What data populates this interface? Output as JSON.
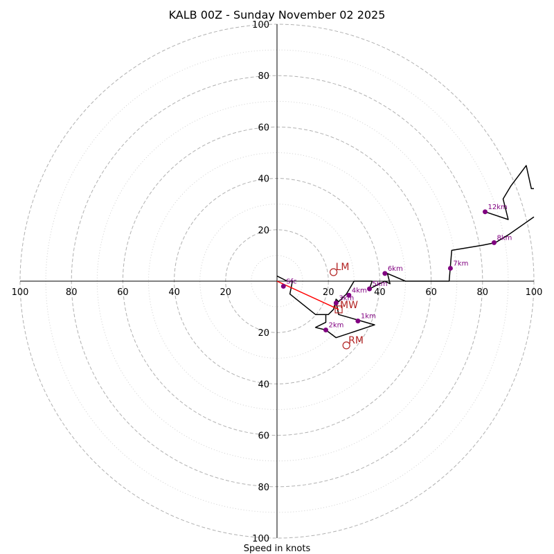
{
  "chart_data": {
    "type": "hodograph",
    "title": "KALB 00Z - Sunday November 02 2025",
    "xlabel": "Speed in knots",
    "ylabel": "",
    "xlim": [
      -100,
      100
    ],
    "ylim": [
      -100,
      100
    ],
    "ring_major": [
      20,
      40,
      60,
      80,
      100
    ],
    "ring_minor": [
      10,
      30,
      50,
      70,
      90
    ],
    "ticks": {
      "top": [
        "100",
        "80",
        "60",
        "40",
        "20"
      ],
      "bottom": [
        "20",
        "40",
        "60",
        "80",
        "100"
      ],
      "left": [
        "100",
        "80",
        "60",
        "40",
        "20"
      ],
      "right": [
        "20",
        "40",
        "60",
        "80",
        "100"
      ]
    },
    "hodograph_line": [
      [
        0,
        2
      ],
      [
        4,
        0
      ],
      [
        6,
        0
      ],
      [
        5,
        -5
      ],
      [
        15,
        -13
      ],
      [
        20,
        -13
      ],
      [
        22,
        -11
      ],
      [
        23,
        -7
      ],
      [
        24,
        -8
      ],
      [
        25,
        -7
      ],
      [
        27,
        -5
      ],
      [
        30,
        0
      ],
      [
        37,
        0
      ],
      [
        36,
        -3
      ],
      [
        42,
        0
      ],
      [
        44,
        -1
      ],
      [
        43,
        3
      ],
      [
        50,
        0
      ],
      [
        67,
        0
      ],
      [
        68,
        12
      ],
      [
        80,
        14
      ],
      [
        85,
        15
      ],
      [
        90,
        18
      ],
      [
        100,
        25
      ]
    ],
    "hodograph_lower": [
      [
        23,
        -8
      ],
      [
        24,
        -13
      ],
      [
        31,
        -15
      ],
      [
        38,
        -17
      ],
      [
        23,
        -22
      ],
      [
        19,
        -19
      ],
      [
        15,
        -18
      ],
      [
        17,
        -17
      ],
      [
        19,
        -16
      ],
      [
        19,
        -13
      ]
    ],
    "hodograph_upper": [
      [
        81,
        27
      ],
      [
        90,
        24
      ],
      [
        88,
        32
      ],
      [
        91,
        37
      ],
      [
        97,
        45
      ],
      [
        99,
        36
      ],
      [
        100,
        36
      ]
    ],
    "height_markers": [
      {
        "label": "1km",
        "u": 31.5,
        "v": -15.5
      },
      {
        "label": "2km",
        "u": 19,
        "v": -19
      },
      {
        "label": "3km",
        "u": 23,
        "v": -8.5
      },
      {
        "label": "4km",
        "u": 28,
        "v": -5.5
      },
      {
        "label": "5km",
        "u": 36,
        "v": -3
      },
      {
        "label": "6km",
        "u": 42,
        "v": 3
      },
      {
        "label": "7km",
        "u": 67.5,
        "v": 5
      },
      {
        "label": "8km",
        "u": 84.5,
        "v": 15
      },
      {
        "label": "12km",
        "u": 81,
        "v": 27
      },
      {
        "label": "Sfc",
        "u": 2.5,
        "v": -2
      }
    ],
    "storm_motion": {
      "LM": {
        "label": "LM",
        "u": 22,
        "v": 3.5
      },
      "RM": {
        "label": "RM",
        "u": 27,
        "v": -25
      },
      "MW": {
        "label": "MW",
        "u": 24,
        "v": -11
      }
    },
    "shear_vector": [
      [
        0,
        0
      ],
      [
        24,
        -11
      ]
    ],
    "colors": {
      "hodograph": "#000000",
      "height_marker": "#800080",
      "storm_marker": "#b22222",
      "shear_vector": "#ff0000",
      "grid": "#b0b0b0"
    }
  }
}
